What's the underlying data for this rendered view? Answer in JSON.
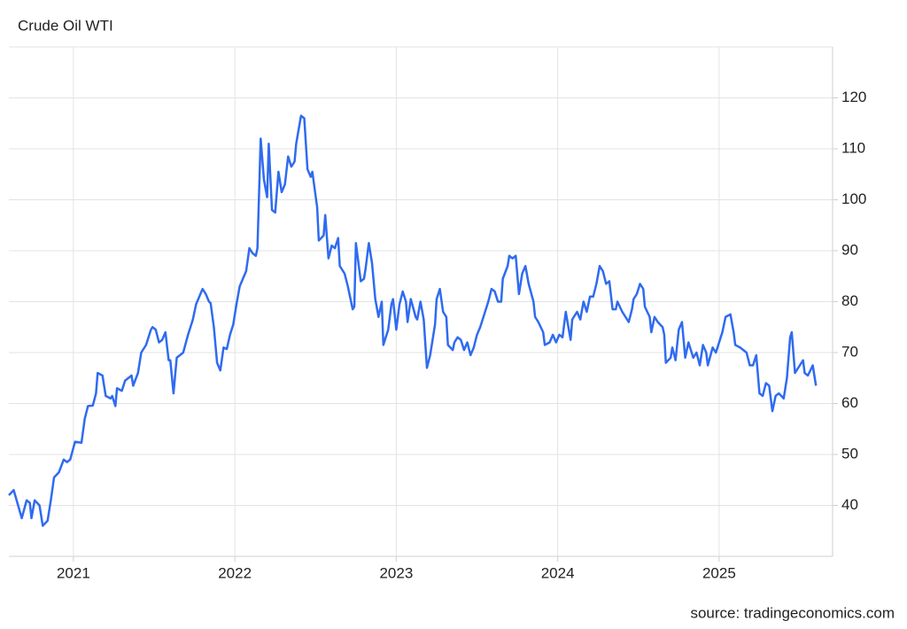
{
  "chart_data": {
    "type": "line",
    "title": "Crude Oil WTI",
    "source": "source: tradingeconomics.com",
    "color": "#2f6bf0",
    "grid": true,
    "x": [
      2020.6,
      2020.63,
      2020.68,
      2020.71,
      2020.73,
      2020.74,
      2020.76,
      2020.79,
      2020.81,
      2020.84,
      2020.86,
      2020.88,
      2020.91,
      2020.94,
      2020.96,
      2020.98,
      2021.01,
      2021.05,
      2021.07,
      2021.09,
      2021.12,
      2021.14,
      2021.15,
      2021.18,
      2021.2,
      2021.23,
      2021.24,
      2021.26,
      2021.27,
      2021.3,
      2021.32,
      2021.36,
      2021.37,
      2021.4,
      2021.42,
      2021.45,
      2021.48,
      2021.49,
      2021.51,
      2021.53,
      2021.55,
      2021.57,
      2021.59,
      2021.6,
      2021.62,
      2021.64,
      2021.68,
      2021.71,
      2021.74,
      2021.76,
      2021.8,
      2021.82,
      2021.84,
      2021.85,
      2021.87,
      2021.89,
      2021.91,
      2021.93,
      2021.95,
      2021.97,
      2021.99,
      2022.01,
      2022.03,
      2022.07,
      2022.09,
      2022.11,
      2022.13,
      2022.14,
      2022.16,
      2022.18,
      2022.2,
      2022.21,
      2022.23,
      2022.25,
      2022.27,
      2022.29,
      2022.31,
      2022.33,
      2022.35,
      2022.37,
      2022.38,
      2022.41,
      2022.43,
      2022.45,
      2022.47,
      2022.48,
      2022.51,
      2022.52,
      2022.55,
      2022.56,
      2022.58,
      2022.6,
      2022.62,
      2022.64,
      2022.65,
      2022.68,
      2022.7,
      2022.73,
      2022.74,
      2022.75,
      2022.78,
      2022.8,
      2022.81,
      2022.83,
      2022.85,
      2022.87,
      2022.89,
      2022.91,
      2022.92,
      2022.95,
      2022.97,
      2022.98,
      2023.0,
      2023.02,
      2023.04,
      2023.06,
      2023.07,
      2023.09,
      2023.12,
      2023.13,
      2023.15,
      2023.17,
      2023.19,
      2023.21,
      2023.24,
      2023.25,
      2023.27,
      2023.29,
      2023.31,
      2023.32,
      2023.35,
      2023.36,
      2023.38,
      2023.4,
      2023.42,
      2023.44,
      2023.46,
      2023.48,
      2023.5,
      2023.52,
      2023.54,
      2023.57,
      2023.59,
      2023.61,
      2023.63,
      2023.65,
      2023.66,
      2023.69,
      2023.7,
      2023.72,
      2023.74,
      2023.76,
      2023.78,
      2023.8,
      2023.82,
      2023.85,
      2023.86,
      2023.88,
      2023.91,
      2023.92,
      2023.95,
      2023.97,
      2023.99,
      2024.01,
      2024.03,
      2024.05,
      2024.08,
      2024.09,
      2024.12,
      2024.14,
      2024.16,
      2024.18,
      2024.2,
      2024.22,
      2024.24,
      2024.26,
      2024.28,
      2024.3,
      2024.32,
      2024.34,
      2024.36,
      2024.37,
      2024.4,
      2024.41,
      2024.44,
      2024.46,
      2024.47,
      2024.49,
      2024.51,
      2024.53,
      2024.54,
      2024.57,
      2024.58,
      2024.6,
      2024.62,
      2024.65,
      2024.66,
      2024.67,
      2024.7,
      2024.71,
      2024.73,
      2024.75,
      2024.77,
      2024.79,
      2024.81,
      2024.84,
      2024.86,
      2024.88,
      2024.9,
      2024.92,
      2024.93,
      2024.96,
      2024.98,
      2024.99,
      2025.02,
      2025.04,
      2025.07,
      2025.09,
      2025.1,
      2025.13,
      2025.15,
      2025.17,
      2025.19,
      2025.21,
      2025.23,
      2025.25,
      2025.27,
      2025.29,
      2025.31,
      2025.33,
      2025.35,
      2025.37,
      2025.4,
      2025.42,
      2025.44,
      2025.45,
      2025.47,
      2025.49,
      2025.52,
      2025.53,
      2025.55,
      2025.58,
      2025.6
    ],
    "values": [
      42,
      43,
      37.5,
      41,
      40.5,
      37.5,
      41,
      40,
      36,
      37,
      41,
      45.5,
      46.5,
      49,
      48.5,
      49,
      52.5,
      52.3,
      57,
      59.5,
      59.6,
      62,
      66,
      65.5,
      61.5,
      61,
      61.5,
      59.5,
      63,
      62.5,
      64.5,
      65.5,
      63.5,
      66,
      70,
      71.5,
      74.5,
      75,
      74.5,
      72,
      72.5,
      74,
      68.5,
      68.5,
      62,
      69,
      70,
      73.5,
      76.5,
      79.5,
      82.5,
      81.5,
      80,
      79.7,
      75,
      68,
      66.5,
      71,
      70.7,
      73.5,
      75.5,
      79.5,
      83,
      86,
      90.5,
      89.5,
      89,
      90.5,
      112,
      104,
      100.5,
      111,
      98,
      97.5,
      105.5,
      101.5,
      103,
      108.5,
      106.5,
      107.5,
      111,
      116.5,
      116,
      106,
      104.5,
      105.5,
      98.5,
      92,
      93,
      97,
      88.5,
      91,
      90.5,
      92.5,
      87,
      85.5,
      83,
      78.5,
      79,
      91.5,
      84,
      84.5,
      86.5,
      91.5,
      87.5,
      80.5,
      77,
      80,
      71.5,
      74.5,
      79.5,
      80.5,
      74.5,
      79.5,
      82,
      80,
      76,
      80.5,
      77,
      76.5,
      80,
      76.5,
      67,
      69.5,
      75.5,
      80.5,
      82.5,
      78,
      77,
      71.5,
      70.5,
      72,
      73,
      72.5,
      70.5,
      72,
      69.5,
      71,
      73.5,
      75,
      77,
      80,
      82.5,
      82,
      80,
      80,
      84.5,
      87,
      89,
      88.5,
      89,
      81.5,
      85.5,
      87,
      83.5,
      80,
      77,
      76,
      74,
      71.5,
      72,
      73.5,
      72,
      73.5,
      73,
      78,
      72.5,
      76.5,
      78,
      76.5,
      80,
      78,
      81,
      81,
      83.5,
      87,
      86,
      83.5,
      84,
      78.5,
      78.5,
      80,
      78,
      77.5,
      76,
      78.5,
      80.5,
      81.5,
      83.5,
      82.5,
      79,
      77,
      74,
      77,
      76,
      75,
      73.5,
      68,
      69,
      71,
      68.5,
      74.5,
      76,
      69,
      72,
      69,
      70,
      67.5,
      71.5,
      70,
      67.5,
      71,
      70,
      71,
      74,
      77,
      77.5,
      74,
      71.5,
      71,
      70.5,
      70,
      67.5,
      67.5,
      69.5,
      62,
      61.5,
      64,
      63.5,
      58.5,
      61.5,
      62,
      61,
      65,
      73,
      74,
      66,
      67,
      68.5,
      66,
      65.5,
      67.5,
      63.5
    ],
    "xlim": [
      2020.6,
      2025.703
    ],
    "xticks": [
      2021,
      2022,
      2023,
      2024,
      2025
    ],
    "ylim": [
      30,
      130
    ],
    "yticks": [
      40,
      50,
      60,
      70,
      80,
      90,
      100,
      110,
      120
    ]
  }
}
